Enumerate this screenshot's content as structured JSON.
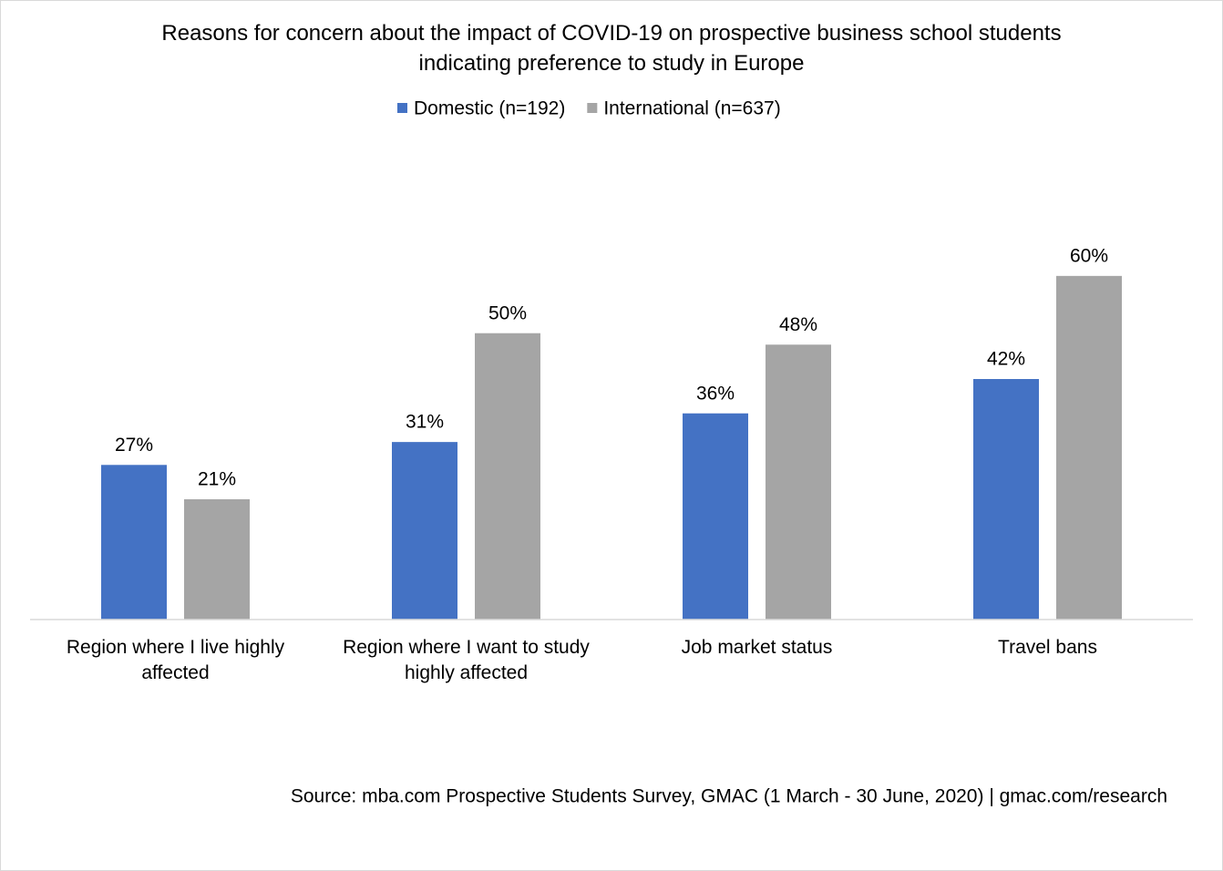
{
  "chart_data": {
    "type": "bar",
    "title": "Reasons for concern about the impact of COVID-19 on prospective business school students indicating preference to study in Europe",
    "categories": [
      "Region where I live highly affected",
      "Region where I want to study highly affected",
      "Job market status",
      "Travel bans"
    ],
    "series": [
      {
        "name": "Domestic (n=192)",
        "color": "#4472c4",
        "values": [
          27,
          31,
          36,
          42
        ],
        "value_labels": [
          "27%",
          "31%",
          "36%",
          "42%"
        ]
      },
      {
        "name": "International (n=637)",
        "color": "#a5a5a5",
        "values": [
          21,
          50,
          48,
          60
        ],
        "value_labels": [
          "21%",
          "50%",
          "48%",
          "60%"
        ]
      }
    ],
    "ylim": [
      0,
      70
    ],
    "legend": "top",
    "source": "Source: mba.com Prospective Students Survey, GMAC (1 March - 30 June, 2020) | gmac.com/research"
  }
}
